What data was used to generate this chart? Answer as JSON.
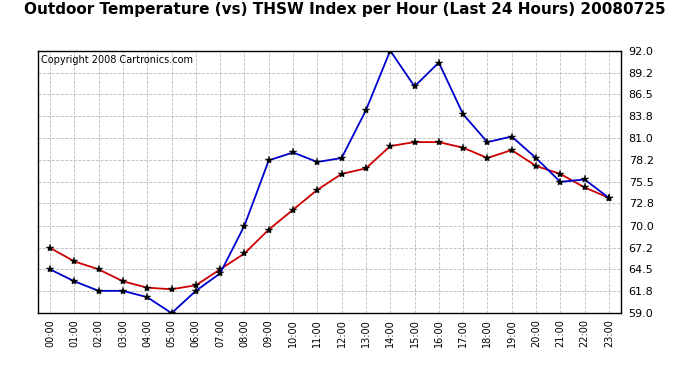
{
  "title": "Outdoor Temperature (vs) THSW Index per Hour (Last 24 Hours) 20080725",
  "copyright": "Copyright 2008 Cartronics.com",
  "hours": [
    0,
    1,
    2,
    3,
    4,
    5,
    6,
    7,
    8,
    9,
    10,
    11,
    12,
    13,
    14,
    15,
    16,
    17,
    18,
    19,
    20,
    21,
    22,
    23
  ],
  "temp": [
    67.2,
    65.5,
    64.5,
    63.0,
    62.2,
    62.0,
    62.5,
    64.5,
    66.5,
    69.5,
    72.0,
    74.5,
    76.5,
    77.2,
    80.0,
    80.5,
    80.5,
    79.8,
    78.5,
    79.5,
    77.5,
    76.5,
    74.8,
    73.5
  ],
  "thsw": [
    64.5,
    63.0,
    61.8,
    61.8,
    61.0,
    59.0,
    61.8,
    64.0,
    70.0,
    78.2,
    79.2,
    78.0,
    78.5,
    84.5,
    92.0,
    87.5,
    90.5,
    84.0,
    80.5,
    81.2,
    78.5,
    75.5,
    75.8,
    73.5
  ],
  "temp_color": "#cc0000",
  "thsw_color": "#0000cc",
  "bg_color": "#ffffff",
  "plot_bg": "#ffffff",
  "grid_color": "#bbbbbb",
  "ylim": [
    59.0,
    92.0
  ],
  "yticks": [
    59.0,
    61.8,
    64.5,
    67.2,
    70.0,
    72.8,
    75.5,
    78.2,
    81.0,
    83.8,
    86.5,
    89.2,
    92.0
  ],
  "title_fontsize": 11,
  "copyright_fontsize": 7,
  "tick_fontsize": 8,
  "xlabel_fontsize": 7
}
